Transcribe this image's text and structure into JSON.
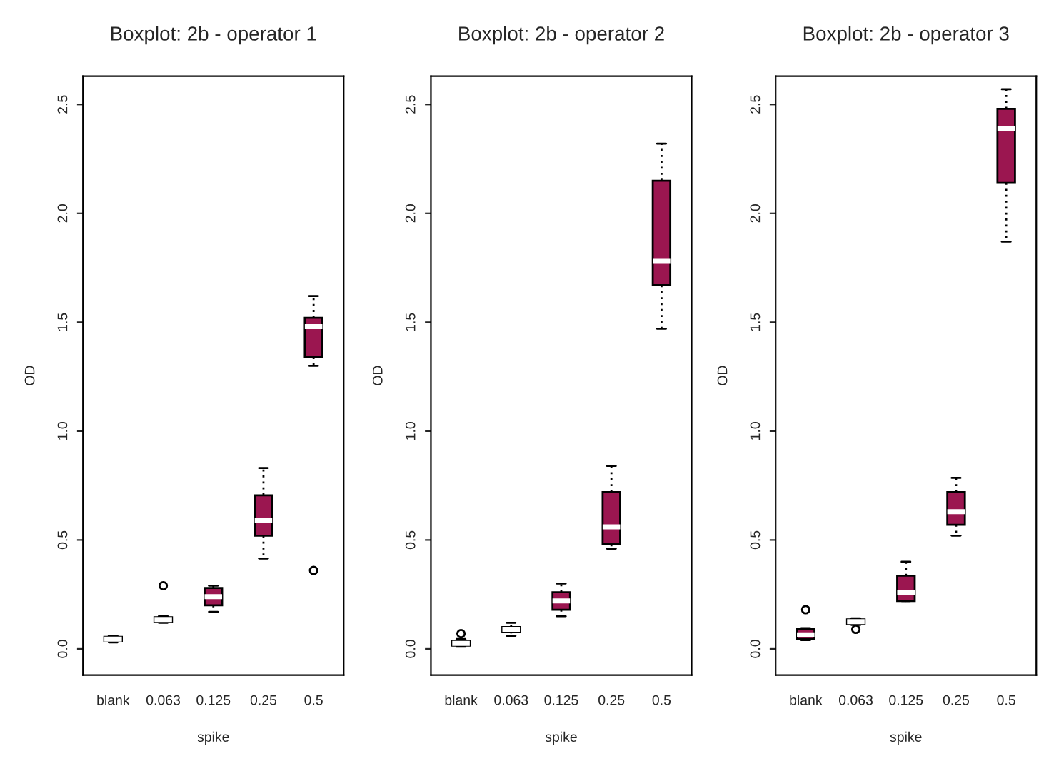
{
  "chart_data": [
    {
      "type": "box",
      "title": "Boxplot: 2b - operator 1",
      "xlabel": "spike",
      "ylabel": "OD",
      "categories": [
        "blank",
        "0.063",
        "0.125",
        "0.25",
        "0.5"
      ],
      "color": "#9b1650",
      "ylim": [
        -0.12,
        2.63
      ],
      "yticks": [
        {
          "value": 0,
          "label": "0.0"
        },
        0.5,
        {
          "value": 1,
          "label": "1.0"
        },
        1.5,
        {
          "value": 2,
          "label": "2.0"
        },
        2.5
      ],
      "boxes": [
        {
          "low": 0.03,
          "q1": 0.035,
          "median": 0.045,
          "q3": 0.055,
          "high": 0.06
        },
        {
          "low": 0.12,
          "q1": 0.125,
          "median": 0.135,
          "q3": 0.145,
          "high": 0.15,
          "outliers": [
            0.29
          ]
        },
        {
          "low": 0.17,
          "q1": 0.2,
          "median": 0.24,
          "q3": 0.28,
          "high": 0.29
        },
        {
          "low": 0.415,
          "q1": 0.52,
          "median": 0.59,
          "q3": 0.705,
          "high": 0.83
        },
        {
          "low": 1.3,
          "q1": 1.34,
          "median": 1.48,
          "q3": 1.52,
          "high": 1.62,
          "outliers": [
            0.36
          ]
        }
      ]
    },
    {
      "type": "box",
      "title": "Boxplot: 2b - operator 2",
      "xlabel": "spike",
      "ylabel": "OD",
      "categories": [
        "blank",
        "0.063",
        "0.125",
        "0.25",
        "0.5"
      ],
      "color": "#9b1650",
      "ylim": [
        -0.12,
        2.63
      ],
      "yticks": [
        {
          "value": 0,
          "label": "0.0"
        },
        0.5,
        {
          "value": 1,
          "label": "1.0"
        },
        1.5,
        {
          "value": 2,
          "label": "2.0"
        },
        2.5
      ],
      "boxes": [
        {
          "low": 0.01,
          "q1": 0.015,
          "median": 0.025,
          "q3": 0.035,
          "high": 0.045,
          "outliers": [
            0.07
          ]
        },
        {
          "low": 0.06,
          "q1": 0.08,
          "median": 0.09,
          "q3": 0.1,
          "high": 0.12
        },
        {
          "low": 0.15,
          "q1": 0.18,
          "median": 0.22,
          "q3": 0.26,
          "high": 0.3
        },
        {
          "low": 0.46,
          "q1": 0.48,
          "median": 0.56,
          "q3": 0.72,
          "high": 0.84
        },
        {
          "low": 1.47,
          "q1": 1.67,
          "median": 1.78,
          "q3": 2.15,
          "high": 2.32
        }
      ]
    },
    {
      "type": "box",
      "title": "Boxplot: 2b - operator 3",
      "xlabel": "spike",
      "ylabel": "OD",
      "categories": [
        "blank",
        "0.063",
        "0.125",
        "0.25",
        "0.5"
      ],
      "color": "#9b1650",
      "ylim": [
        -0.12,
        2.63
      ],
      "yticks": [
        {
          "value": 0,
          "label": "0.0"
        },
        0.5,
        {
          "value": 1,
          "label": "1.0"
        },
        1.5,
        {
          "value": 2,
          "label": "2.0"
        },
        2.5
      ],
      "boxes": [
        {
          "low": 0.04,
          "q1": 0.045,
          "median": 0.065,
          "q3": 0.09,
          "high": 0.095,
          "outliers": [
            0.18
          ]
        },
        {
          "low": 0.11,
          "q1": 0.115,
          "median": 0.125,
          "q3": 0.135,
          "high": 0.14,
          "outliers": [
            0.09
          ]
        },
        {
          "low": 0.22,
          "q1": 0.22,
          "median": 0.26,
          "q3": 0.336,
          "high": 0.4
        },
        {
          "low": 0.52,
          "q1": 0.57,
          "median": 0.63,
          "q3": 0.72,
          "high": 0.785
        },
        {
          "low": 1.87,
          "q1": 2.14,
          "median": 2.39,
          "q3": 2.48,
          "high": 2.57
        }
      ]
    }
  ]
}
